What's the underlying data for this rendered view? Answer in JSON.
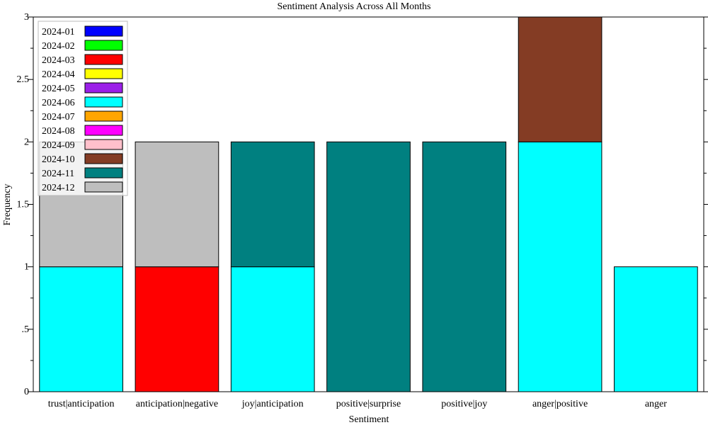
{
  "chart_data": {
    "type": "bar",
    "stacked": true,
    "title": "Sentiment Analysis Across All Months",
    "xlabel": "Sentiment",
    "ylabel": "Frequency",
    "ylim": [
      0,
      3
    ],
    "yticks": [
      {
        "value": 0,
        "label": "0"
      },
      {
        "value": 0.5,
        "label": ".5"
      },
      {
        "value": 1,
        "label": "1"
      },
      {
        "value": 1.5,
        "label": "1.5"
      },
      {
        "value": 2,
        "label": "2"
      },
      {
        "value": 2.5,
        "label": "2.5"
      },
      {
        "value": 3,
        "label": "3"
      }
    ],
    "grid": false,
    "legend_position": "top-left",
    "categories": [
      "trust|anticipation",
      "anticipation|negative",
      "joy|anticipation",
      "positive|surprise",
      "positive|joy",
      "anger|positive",
      "anger"
    ],
    "series": [
      {
        "name": "2024-01",
        "color": "#0000ff",
        "values": [
          0,
          0,
          0,
          0,
          0,
          0,
          0
        ]
      },
      {
        "name": "2024-02",
        "color": "#00ff00",
        "values": [
          0,
          0,
          0,
          0,
          0,
          0,
          0
        ]
      },
      {
        "name": "2024-03",
        "color": "#ff0000",
        "values": [
          0,
          1,
          0,
          0,
          0,
          0,
          0
        ]
      },
      {
        "name": "2024-04",
        "color": "#ffff00",
        "values": [
          0,
          0,
          0,
          0,
          0,
          0,
          0
        ]
      },
      {
        "name": "2024-05",
        "color": "#9b1fe8",
        "values": [
          0,
          0,
          0,
          0,
          0,
          0,
          0
        ]
      },
      {
        "name": "2024-06",
        "color": "#00ffff",
        "values": [
          1,
          0,
          1,
          0,
          0,
          2,
          1
        ]
      },
      {
        "name": "2024-07",
        "color": "#ffa500",
        "values": [
          0,
          0,
          0,
          0,
          0,
          0,
          0
        ]
      },
      {
        "name": "2024-08",
        "color": "#ff00ff",
        "values": [
          0,
          0,
          0,
          0,
          0,
          0,
          0
        ]
      },
      {
        "name": "2024-09",
        "color": "#ffc0cb",
        "values": [
          0,
          0,
          0,
          0,
          0,
          0,
          0
        ]
      },
      {
        "name": "2024-10",
        "color": "#843c24",
        "values": [
          0,
          0,
          0,
          0,
          0,
          1,
          0
        ]
      },
      {
        "name": "2024-11",
        "color": "#008080",
        "values": [
          0,
          0,
          1,
          2,
          2,
          0,
          0
        ]
      },
      {
        "name": "2024-12",
        "color": "#bebebe",
        "values": [
          1,
          1,
          0,
          0,
          0,
          0,
          0
        ]
      }
    ]
  }
}
